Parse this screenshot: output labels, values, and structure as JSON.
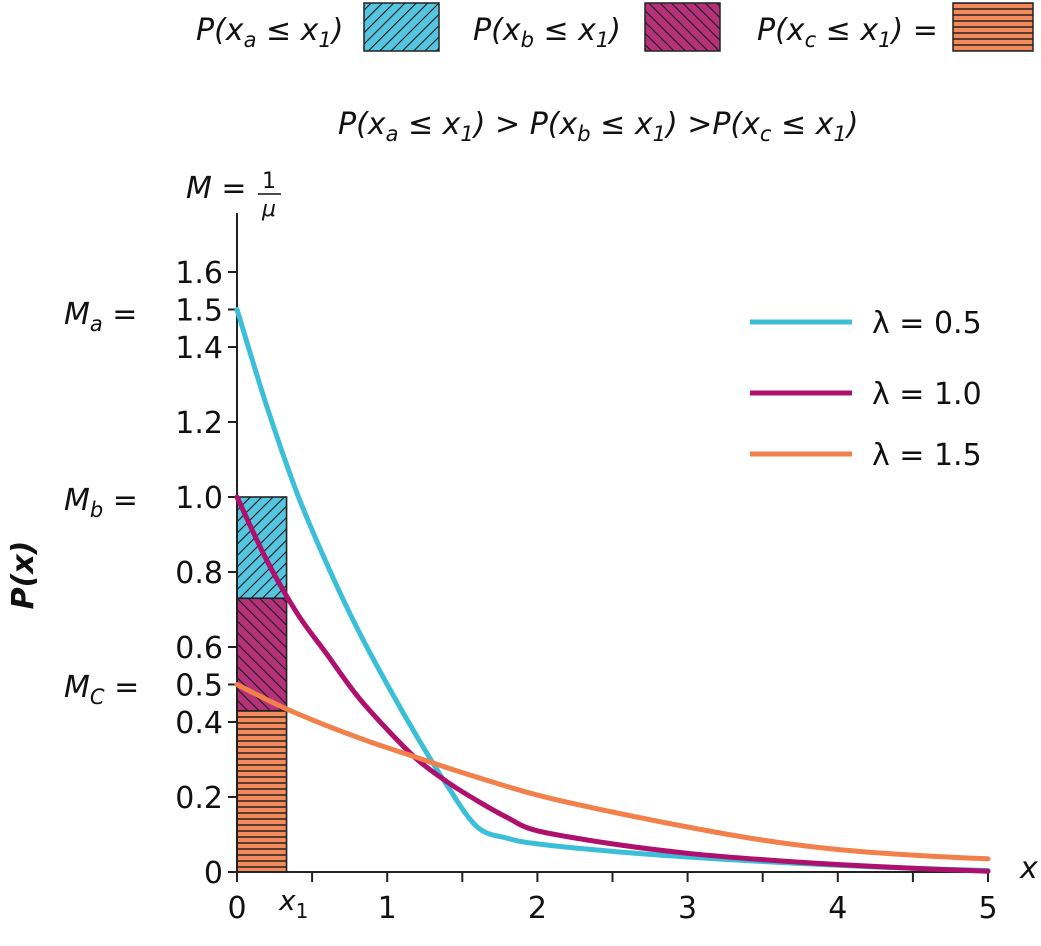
{
  "legend_top": {
    "items": [
      {
        "label_main": "P(x",
        "sub": "a",
        "label_rest": " ≤ x",
        "sub2": "1",
        "close": ")",
        "suffix": "",
        "color": "#56c6e0",
        "pattern": "diag-right"
      },
      {
        "label_main": "P(x",
        "sub": "b",
        "label_rest": " ≤ x",
        "sub2": "1",
        "close": ")",
        "suffix": "",
        "color": "#b5327a",
        "pattern": "diag-left"
      },
      {
        "label_main": "P(x",
        "sub": "c",
        "label_rest": " ≤ x",
        "sub2": "1",
        "close": ")",
        "suffix": " =",
        "color": "#f28a5b",
        "pattern": "horizontal"
      }
    ]
  },
  "inequality": {
    "p1": "P(x",
    "s1": "a",
    "m1": " ≤ x",
    "n1": "1",
    "c1": ") > ",
    "p2": "P(x",
    "s2": "b",
    "m2": " ≤ x",
    "n2": "1",
    "c2": ") >",
    "p3": "P(x",
    "s3": "c",
    "m3": " ≤ x",
    "n3": "1",
    "c3": ")"
  },
  "m_formula": {
    "lhs": "M = ",
    "num": "1",
    "den": "μ"
  },
  "y_axis": {
    "label": "P(x)"
  },
  "x_axis": {
    "label": "x",
    "x1_label": "x",
    "x1_sub": "1"
  },
  "y_marks": {
    "ma": {
      "m": "M",
      "sub": "a",
      "eq": " = "
    },
    "mb": {
      "m": "M",
      "sub": "b",
      "eq": " = "
    },
    "mc": {
      "m": "M",
      "sub": "C",
      "eq": " = "
    }
  },
  "chart_data": {
    "type": "line",
    "xlim": [
      0,
      5
    ],
    "ylim": [
      0,
      1.6
    ],
    "x_ticks": [
      0,
      1,
      2,
      3,
      4,
      5
    ],
    "x_minor_ticks": [
      0.5,
      1.5,
      2.5,
      3.5,
      4.5
    ],
    "y_ticks": [
      {
        "value": 0,
        "label": "0"
      },
      {
        "value": 0.2,
        "label": "0.2"
      },
      {
        "value": 0.4,
        "label": "0.4"
      },
      {
        "value": 0.5,
        "label": "0.5"
      },
      {
        "value": 0.6,
        "label": "0.6"
      },
      {
        "value": 0.8,
        "label": "0.8"
      },
      {
        "value": 1.0,
        "label": "1.0"
      },
      {
        "value": 1.2,
        "label": "1.2"
      },
      {
        "value": 1.4,
        "label": "1.4"
      },
      {
        "value": 1.5,
        "label": "1.5"
      },
      {
        "value": 1.6,
        "label": "1.6"
      }
    ],
    "x1": 0.33,
    "series": [
      {
        "name": "λ = 0.5",
        "color": "#3bbfd9",
        "points": [
          [
            0,
            1.5
          ],
          [
            0.2,
            1.24
          ],
          [
            0.4,
            1.01
          ],
          [
            0.6,
            0.82
          ],
          [
            0.8,
            0.65
          ],
          [
            1.0,
            0.5
          ],
          [
            1.2,
            0.36
          ],
          [
            1.4,
            0.23
          ],
          [
            1.6,
            0.12
          ],
          [
            1.8,
            0.09
          ],
          [
            2.0,
            0.075
          ],
          [
            2.5,
            0.055
          ],
          [
            3.0,
            0.04
          ],
          [
            3.5,
            0.028
          ],
          [
            4.0,
            0.018
          ],
          [
            4.5,
            0.01
          ],
          [
            5.0,
            0.004
          ]
        ]
      },
      {
        "name": "λ = 1.0",
        "color": "#b0106d",
        "points": [
          [
            0,
            1.0
          ],
          [
            0.2,
            0.83
          ],
          [
            0.4,
            0.69
          ],
          [
            0.6,
            0.58
          ],
          [
            0.8,
            0.47
          ],
          [
            1.0,
            0.38
          ],
          [
            1.2,
            0.3
          ],
          [
            1.4,
            0.24
          ],
          [
            1.6,
            0.19
          ],
          [
            1.8,
            0.145
          ],
          [
            2.0,
            0.11
          ],
          [
            2.5,
            0.075
          ],
          [
            3.0,
            0.05
          ],
          [
            3.5,
            0.033
          ],
          [
            4.0,
            0.02
          ],
          [
            4.5,
            0.01
          ],
          [
            5.0,
            0.002
          ]
        ]
      },
      {
        "name": "λ = 1.5",
        "color": "#f2804a",
        "points": [
          [
            0,
            0.5
          ],
          [
            0.3,
            0.44
          ],
          [
            0.6,
            0.39
          ],
          [
            0.9,
            0.345
          ],
          [
            1.2,
            0.305
          ],
          [
            1.5,
            0.265
          ],
          [
            2.0,
            0.205
          ],
          [
            2.5,
            0.16
          ],
          [
            3.0,
            0.12
          ],
          [
            3.5,
            0.085
          ],
          [
            4.0,
            0.06
          ],
          [
            4.5,
            0.045
          ],
          [
            5.0,
            0.035
          ]
        ]
      }
    ],
    "bars": [
      {
        "from": 0,
        "to": 0.43,
        "color": "#f28a5b",
        "pattern": "horizontal"
      },
      {
        "from": 0.43,
        "to": 0.73,
        "color": "#b5327a",
        "pattern": "diag-left"
      },
      {
        "from": 0.73,
        "to": 1.0,
        "color": "#56c6e0",
        "pattern": "diag-right"
      }
    ]
  }
}
